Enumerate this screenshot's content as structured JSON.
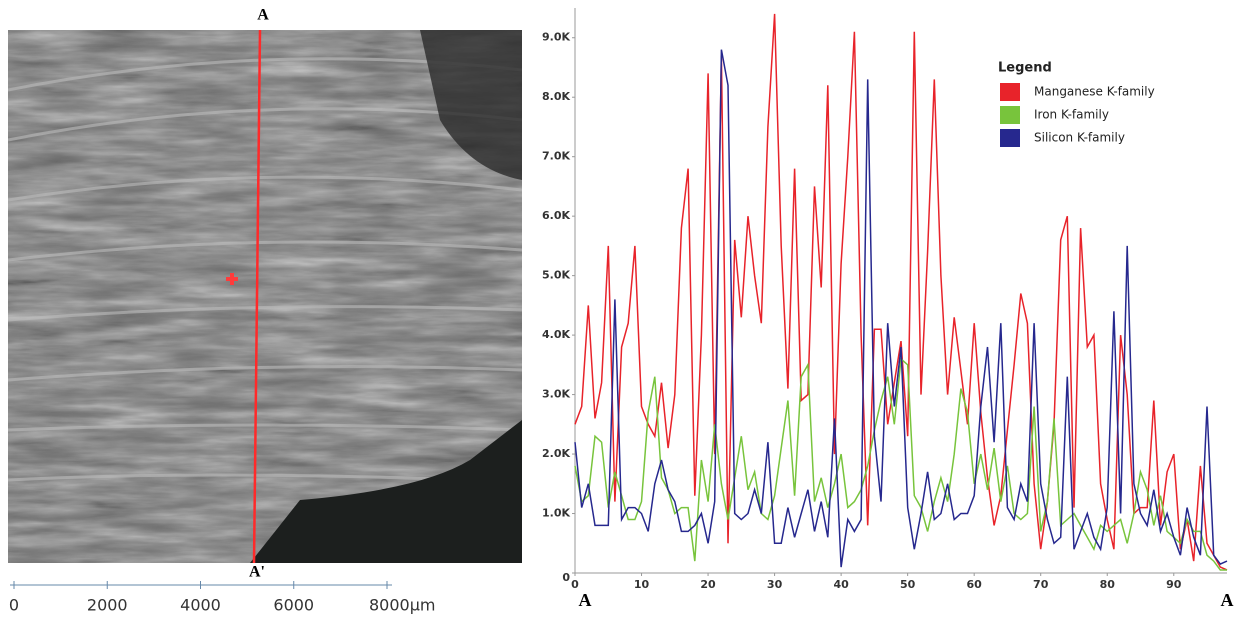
{
  "image": {
    "top_label": "A",
    "bottom_label": "A'"
  },
  "scale_bar": {
    "xlim": [
      0,
      8000
    ],
    "xticks": [
      0,
      2000,
      4000,
      6000,
      {
        "value": 8000,
        "label": "8000µm"
      }
    ]
  },
  "chart_data": {
    "type": "line",
    "start_label": "A",
    "end_label": "A",
    "legend": {
      "title": "Legend",
      "position": "upper-right"
    },
    "xlim": [
      0,
      98
    ],
    "xticks": [
      0,
      10,
      20,
      30,
      40,
      50,
      60,
      70,
      80,
      90
    ],
    "ylim": [
      0,
      9500
    ],
    "yticks": [
      0,
      {
        "value": 1000,
        "label": "1.0K"
      },
      {
        "value": 2000,
        "label": "2.0K"
      },
      {
        "value": 3000,
        "label": "3.0K"
      },
      {
        "value": 4000,
        "label": "4.0K"
      },
      {
        "value": 5000,
        "label": "5.0K"
      },
      {
        "value": 6000,
        "label": "6.0K"
      },
      {
        "value": 7000,
        "label": "7.0K"
      },
      {
        "value": 8000,
        "label": "8.0K"
      },
      {
        "value": 9000,
        "label": "9.0K"
      }
    ],
    "x": [
      0,
      1,
      2,
      3,
      4,
      5,
      6,
      7,
      8,
      9,
      10,
      11,
      12,
      13,
      14,
      15,
      16,
      17,
      18,
      19,
      20,
      21,
      22,
      23,
      24,
      25,
      26,
      27,
      28,
      29,
      30,
      31,
      32,
      33,
      34,
      35,
      36,
      37,
      38,
      39,
      40,
      41,
      42,
      43,
      44,
      45,
      46,
      47,
      48,
      49,
      50,
      51,
      52,
      53,
      54,
      55,
      56,
      57,
      58,
      59,
      60,
      61,
      62,
      63,
      64,
      65,
      66,
      67,
      68,
      69,
      70,
      71,
      72,
      73,
      74,
      75,
      76,
      77,
      78,
      79,
      80,
      81,
      82,
      83,
      84,
      85,
      86,
      87,
      88,
      89,
      90,
      91,
      92,
      93,
      94,
      95,
      96,
      97,
      98
    ],
    "series": [
      {
        "name": "Manganese K-family",
        "color": "#e8232a",
        "values": [
          2500,
          2800,
          4500,
          2600,
          3200,
          5500,
          1200,
          3800,
          4200,
          5500,
          2800,
          2500,
          2300,
          3200,
          2100,
          3000,
          5800,
          6800,
          1300,
          4000,
          8400,
          2000,
          8700,
          500,
          5600,
          4300,
          6000,
          5000,
          4200,
          7500,
          9400,
          5500,
          3100,
          6800,
          2900,
          3000,
          6500,
          4800,
          8200,
          2000,
          5200,
          7000,
          9100,
          4000,
          800,
          4100,
          4100,
          2500,
          3200,
          3900,
          2300,
          9100,
          3000,
          5400,
          8300,
          5000,
          3000,
          4300,
          3400,
          2500,
          4200,
          2700,
          1600,
          800,
          1300,
          2400,
          3500,
          4700,
          4200,
          1500,
          400,
          1200,
          2500,
          5600,
          6000,
          1100,
          5800,
          3800,
          4000,
          1500,
          900,
          400,
          4000,
          3000,
          1000,
          1100,
          1100,
          2900,
          800,
          1700,
          2000,
          400,
          900,
          200,
          1800,
          500,
          300,
          100,
          50
        ]
      },
      {
        "name": "Iron K-family",
        "color": "#78c43c",
        "values": [
          1800,
          1200,
          1300,
          2300,
          2200,
          1100,
          1700,
          1300,
          900,
          900,
          1200,
          2700,
          3300,
          1600,
          1400,
          1000,
          1100,
          1100,
          200,
          1900,
          1200,
          2500,
          1500,
          900,
          1600,
          2300,
          1400,
          1700,
          1000,
          900,
          1300,
          2100,
          2900,
          1300,
          3300,
          3500,
          1200,
          1600,
          1100,
          1500,
          2000,
          1100,
          1200,
          1400,
          1800,
          2400,
          2900,
          3300,
          2500,
          3600,
          3500,
          1300,
          1100,
          700,
          1200,
          1600,
          1200,
          2000,
          3100,
          2700,
          1500,
          2000,
          1400,
          2100,
          1200,
          1800,
          1000,
          900,
          1000,
          2800,
          700,
          1200,
          2600,
          800,
          900,
          1000,
          800,
          600,
          400,
          800,
          700,
          800,
          900,
          500,
          1000,
          1700,
          1400,
          800,
          1300,
          700,
          600,
          500,
          900,
          700,
          700,
          300,
          200,
          50,
          50
        ]
      },
      {
        "name": "Silicon K-family",
        "color": "#26288e",
        "values": [
          2200,
          1100,
          1500,
          800,
          800,
          800,
          4600,
          900,
          1100,
          1100,
          1000,
          700,
          1500,
          1900,
          1400,
          1200,
          700,
          700,
          800,
          1000,
          500,
          1200,
          8800,
          8200,
          1000,
          900,
          1000,
          1400,
          1000,
          2200,
          500,
          500,
          1100,
          600,
          1000,
          1400,
          700,
          1200,
          600,
          2600,
          100,
          900,
          700,
          900,
          8300,
          2300,
          1200,
          4200,
          2800,
          3800,
          1100,
          400,
          1000,
          1700,
          900,
          1000,
          1500,
          900,
          1000,
          1000,
          1300,
          2800,
          3800,
          2200,
          4200,
          1100,
          900,
          1500,
          1200,
          4200,
          1500,
          900,
          500,
          600,
          3300,
          400,
          700,
          1000,
          600,
          400,
          1100,
          4400,
          1000,
          5500,
          1500,
          1000,
          800,
          1400,
          700,
          1000,
          600,
          300,
          1100,
          600,
          300,
          2800,
          300,
          150,
          200
        ]
      }
    ]
  }
}
